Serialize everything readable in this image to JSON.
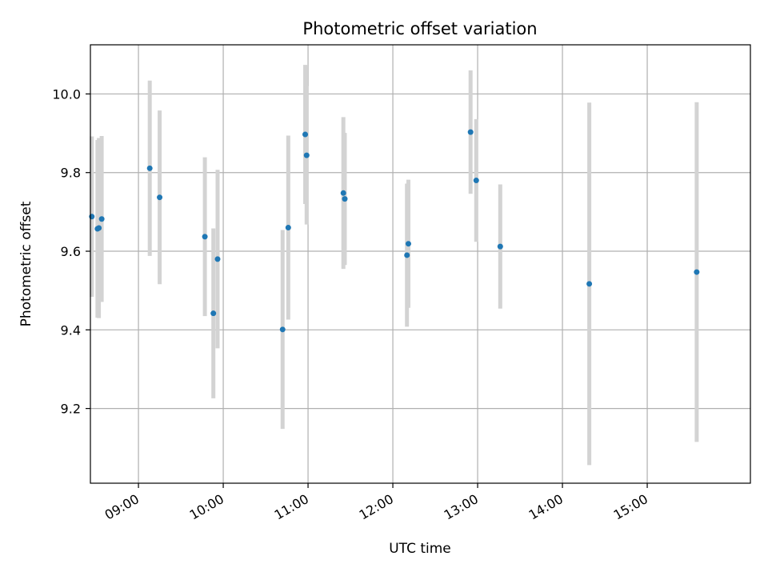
{
  "chart_data": {
    "type": "scatter",
    "title": "Photometric offset variation",
    "xlabel": "UTC time",
    "ylabel": "Photometric offset",
    "x_ticks": [
      "09:00",
      "10:00",
      "11:00",
      "12:00",
      "13:00",
      "14:00",
      "15:00"
    ],
    "y_ticks": [
      "9.2",
      "9.4",
      "9.6",
      "9.8",
      "10.0"
    ],
    "xlim": [
      "08:26",
      "16:13"
    ],
    "ylim": [
      9.01,
      10.125
    ],
    "grid": true,
    "colors": {
      "point": "#1f77b4",
      "errorbar": "#d3d3d3"
    },
    "points": [
      {
        "x": "08:27",
        "y": 9.688,
        "err": 0.204
      },
      {
        "x": "08:31",
        "y": 9.657,
        "err": 0.226
      },
      {
        "x": "08:32",
        "y": 9.659,
        "err": 0.229
      },
      {
        "x": "08:34",
        "y": 9.682,
        "err": 0.211
      },
      {
        "x": "09:08",
        "y": 9.811,
        "err": 0.223
      },
      {
        "x": "09:15",
        "y": 9.737,
        "err": 0.221
      },
      {
        "x": "09:47",
        "y": 9.637,
        "err": 0.202
      },
      {
        "x": "09:53",
        "y": 9.442,
        "err": 0.216
      },
      {
        "x": "09:56",
        "y": 9.58,
        "err": 0.227
      },
      {
        "x": "10:42",
        "y": 9.401,
        "err": 0.253
      },
      {
        "x": "10:46",
        "y": 9.66,
        "err": 0.234
      },
      {
        "x": "10:58",
        "y": 9.897,
        "err": 0.177
      },
      {
        "x": "10:59",
        "y": 9.844,
        "err": 0.176
      },
      {
        "x": "11:25",
        "y": 9.748,
        "err": 0.193
      },
      {
        "x": "11:26",
        "y": 9.733,
        "err": 0.168
      },
      {
        "x": "12:10",
        "y": 9.59,
        "err": 0.182
      },
      {
        "x": "12:11",
        "y": 9.619,
        "err": 0.163
      },
      {
        "x": "12:55",
        "y": 9.903,
        "err": 0.157
      },
      {
        "x": "12:59",
        "y": 9.78,
        "err": 0.156
      },
      {
        "x": "13:16",
        "y": 9.612,
        "err": 0.158
      },
      {
        "x": "14:19",
        "y": 9.517,
        "err": 0.461
      },
      {
        "x": "15:35",
        "y": 9.547,
        "err": 0.432
      }
    ]
  }
}
